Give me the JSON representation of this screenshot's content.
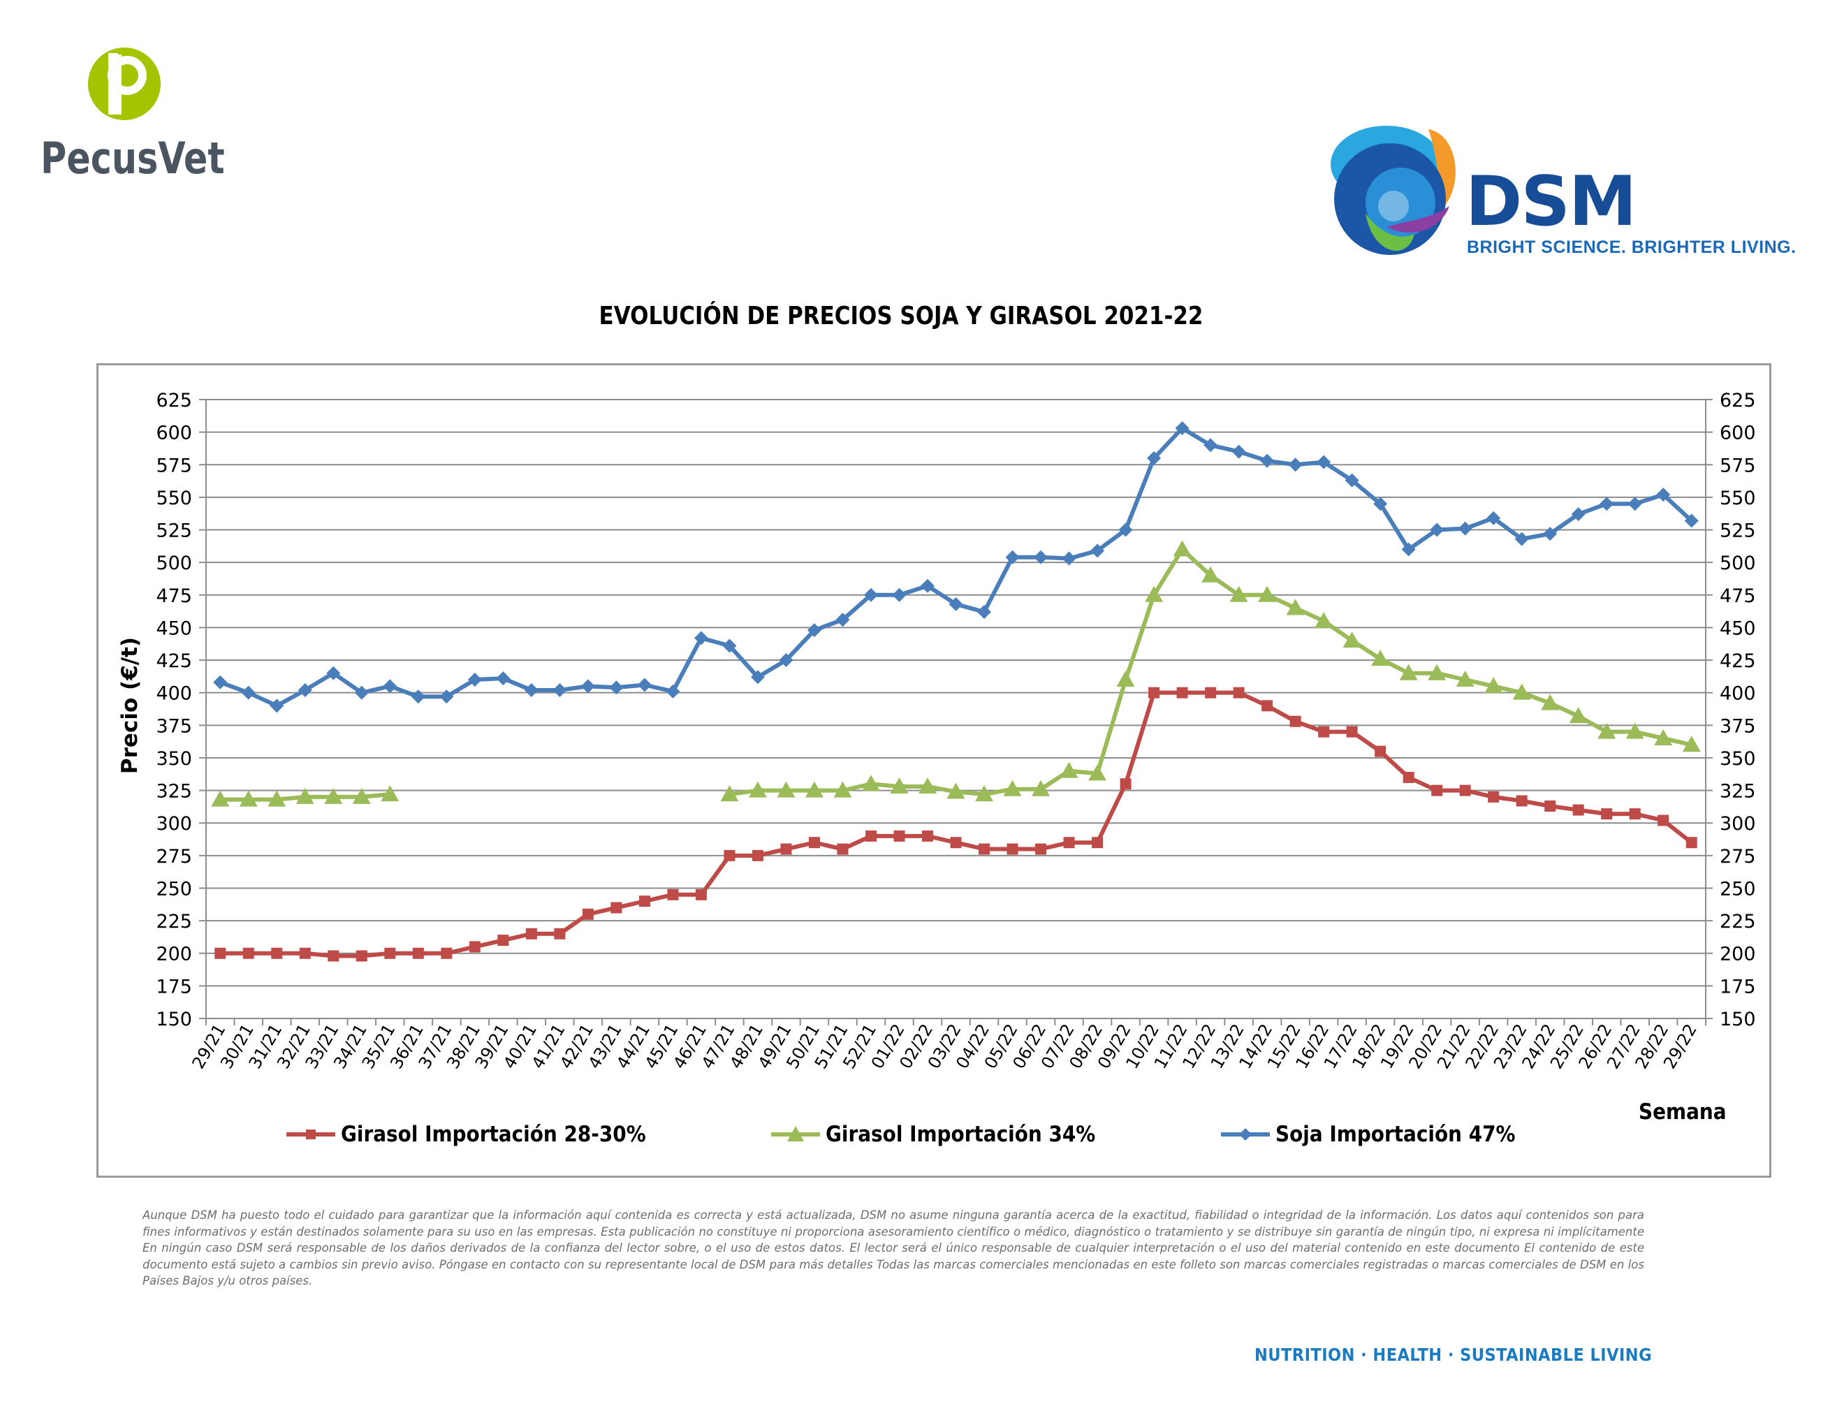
{
  "brand": {
    "left_logo_name": "PecusVet",
    "right_logo_name": "DSM",
    "right_logo_tagline": "BRIGHT SCIENCE. BRIGHTER LIVING."
  },
  "colors": {
    "girasol_28_30": "#be4b48",
    "girasol_34": "#9bbb59",
    "soja_47": "#4a7ebb",
    "pecusvet_green": "#a5c400",
    "dsm_blue": "#164d96"
  },
  "chart_data": {
    "type": "line",
    "title": "EVOLUCIÓN DE PRECIOS SOJA Y GIRASOL 2021-22",
    "ylabel": "Precio (€/t)",
    "xlabel": "Semana",
    "ylim": [
      150,
      625
    ],
    "yticks": [
      150,
      175,
      200,
      225,
      250,
      275,
      300,
      325,
      350,
      375,
      400,
      425,
      450,
      475,
      500,
      525,
      550,
      575,
      600,
      625
    ],
    "grid": true,
    "legend_position": "bottom",
    "categories": [
      "29/21",
      "30/21",
      "31/21",
      "32/21",
      "33/21",
      "34/21",
      "35/21",
      "36/21",
      "37/21",
      "38/21",
      "39/21",
      "40/21",
      "41/21",
      "42/21",
      "43/21",
      "44/21",
      "45/21",
      "46/21",
      "47/21",
      "48/21",
      "49/21",
      "50/21",
      "51/21",
      "52/21",
      "01/22",
      "02/22",
      "03/22",
      "04/22",
      "05/22",
      "06/22",
      "07/22",
      "08/22",
      "09/22",
      "10/22",
      "11/22",
      "12/22",
      "13/22",
      "14/22",
      "15/22",
      "16/22",
      "17/22",
      "18/22",
      "19/22",
      "20/22",
      "21/22",
      "22/22",
      "23/22",
      "24/22",
      "25/22",
      "26/22",
      "27/22",
      "28/22",
      "29/22"
    ],
    "series": [
      {
        "name": "Girasol Importación 28-30%",
        "marker": "square",
        "values": [
          200,
          200,
          200,
          200,
          198,
          198,
          200,
          200,
          200,
          205,
          210,
          215,
          215,
          230,
          235,
          240,
          245,
          245,
          275,
          275,
          280,
          285,
          280,
          290,
          290,
          290,
          285,
          280,
          280,
          280,
          285,
          285,
          330,
          400,
          400,
          400,
          400,
          390,
          378,
          370,
          370,
          355,
          335,
          325,
          325,
          320,
          317,
          313,
          310,
          307,
          307,
          302,
          285
        ]
      },
      {
        "name": "Girasol Importación 34%",
        "marker": "triangle",
        "values": [
          318,
          318,
          318,
          320,
          320,
          320,
          322,
          null,
          null,
          null,
          null,
          null,
          null,
          null,
          null,
          null,
          null,
          null,
          322,
          325,
          325,
          325,
          325,
          330,
          328,
          328,
          324,
          322,
          326,
          326,
          340,
          338,
          410,
          475,
          510,
          490,
          475,
          475,
          465,
          455,
          440,
          426,
          415,
          415,
          410,
          405,
          400,
          392,
          382,
          370,
          370,
          365,
          360
        ]
      },
      {
        "name": "Soja Importación 47%",
        "marker": "diamond",
        "values": [
          408,
          400,
          390,
          402,
          415,
          400,
          405,
          397,
          397,
          410,
          411,
          402,
          402,
          405,
          404,
          406,
          401,
          442,
          436,
          412,
          425,
          448,
          456,
          475,
          475,
          482,
          468,
          462,
          504,
          504,
          503,
          509,
          525,
          580,
          603,
          590,
          585,
          578,
          575,
          577,
          563,
          545,
          510,
          525,
          526,
          534,
          518,
          522,
          537,
          545,
          545,
          552,
          532
        ]
      }
    ]
  },
  "disclaimer": "Aunque DSM ha puesto todo el cuidado para garantizar que la información aquí contenida es correcta y está actualizada, DSM no asume ninguna garantía acerca de la exactitud, fiabilidad o integridad de la información. Los datos aquí contenidos son para fines informativos y están destinados solamente para su uso en las empresas. Esta publicación no constituye ni proporciona asesoramiento científico o médico, diagnóstico o tratamiento y se distribuye sin garantía de ningún tipo, ni expresa ni implícitamente En ningún caso DSM será responsable de los daños derivados de la confianza del lector sobre, o el uso de estos datos. El lector será el único responsable de cualquier interpretación o el uso del material contenido en este documento El contenido de este documento está sujeto a cambios sin previo aviso. Póngase en contacto con su representante local de DSM para más detalles Todas las marcas comerciales mencionadas en este folleto son marcas comerciales registradas o marcas comerciales de DSM en los Países Bajos y/u otros países.",
  "footer": "NUTRITION · HEALTH · SUSTAINABLE LIVING"
}
